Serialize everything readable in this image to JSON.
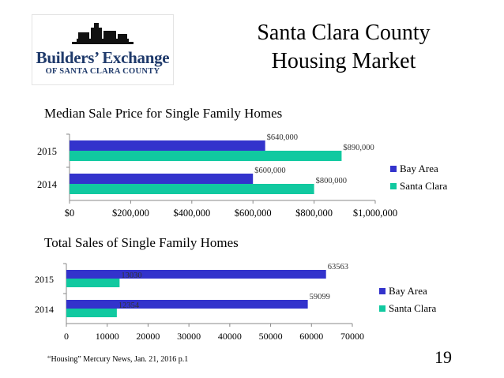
{
  "logo": {
    "line1": "Builders’ Exchange",
    "line2": "OF SANTA CLARA COUNTY",
    "color": "#1f3a6b"
  },
  "slide": {
    "title_line1": "Santa Clara County",
    "title_line2": "Housing Market",
    "source": "“Housing” Mercury News, Jan. 21, 2016 p.1",
    "page_number": "19"
  },
  "chart_data": [
    {
      "type": "bar",
      "orientation": "horizontal",
      "title": "Median Sale Price for Single Family Homes",
      "categories": [
        "2014",
        "2015"
      ],
      "series": [
        {
          "name": "Bay Area",
          "values": [
            600000,
            640000
          ],
          "labels": [
            "$600,000",
            "$640,000"
          ],
          "color": "#3333cc"
        },
        {
          "name": "Santa Clara",
          "values": [
            800000,
            890000
          ],
          "labels": [
            "$800,000",
            "$890,000"
          ],
          "color": "#11c9a0"
        }
      ],
      "xlim": [
        0,
        1000000
      ],
      "xticks": [
        0,
        200000,
        400000,
        600000,
        800000,
        1000000
      ],
      "xtick_labels": [
        "$0",
        "$200,000",
        "$400,000",
        "$600,000",
        "$800,000",
        "$1,000,000"
      ],
      "grid": false,
      "legend": "right"
    },
    {
      "type": "bar",
      "orientation": "horizontal",
      "title": "Total Sales of Single Family Homes",
      "categories": [
        "2014",
        "2015"
      ],
      "series": [
        {
          "name": "Bay Area",
          "values": [
            59099,
            63563
          ],
          "labels": [
            "59099",
            "63563"
          ],
          "color": "#3333cc"
        },
        {
          "name": "Santa Clara",
          "values": [
            12354,
            13030
          ],
          "labels": [
            "12354",
            "13030"
          ],
          "color": "#11c9a0"
        }
      ],
      "xlim": [
        0,
        70000
      ],
      "xticks": [
        0,
        10000,
        20000,
        30000,
        40000,
        50000,
        60000,
        70000
      ],
      "xtick_labels": [
        "0",
        "10000",
        "20000",
        "30000",
        "40000",
        "50000",
        "60000",
        "70000"
      ],
      "grid": false,
      "legend": "right"
    }
  ]
}
